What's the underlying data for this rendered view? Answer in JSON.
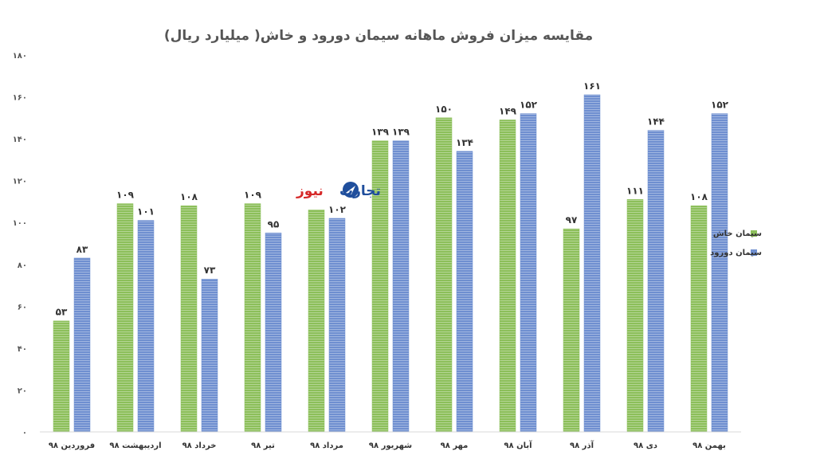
{
  "chart_data": {
    "type": "bar",
    "title": "مقایسه میزان فروش ماهانه سیمان دورود و خاش( میلیارد ریال)",
    "categories": [
      "فروردین ۹۸",
      "اردیبهشت ۹۸",
      "خرداد ۹۸",
      "تیر ۹۸",
      "مرداد ۹۸",
      "شهریور ۹۸",
      "مهر ۹۸",
      "آبان ۹۸",
      "آذر ۹۸",
      "دی ۹۸",
      "بهمن ۹۸"
    ],
    "series": [
      {
        "name": "سیمان خاش",
        "color": "#8cbf5a",
        "values": [
          53,
          109,
          108,
          109,
          106,
          139,
          150,
          149,
          97,
          111,
          108
        ],
        "labels": [
          "۵۳",
          "۱۰۹",
          "۱۰۸",
          "۱۰۹",
          "",
          "۱۳۹",
          "۱۵۰",
          "۱۴۹",
          "۹۷",
          "۱۱۱",
          "۱۰۸"
        ]
      },
      {
        "name": "سیمان دورود",
        "color": "#6f8fd0",
        "values": [
          83,
          101,
          73,
          95,
          102,
          139,
          134,
          152,
          161,
          144,
          152
        ],
        "labels": [
          "۸۳",
          "۱۰۱",
          "۷۳",
          "۹۵",
          "۱۰۲",
          "۱۳۹",
          "۱۳۴",
          "۱۵۲",
          "۱۶۱",
          "۱۴۴",
          "۱۵۲"
        ]
      }
    ],
    "ylim": [
      0,
      180
    ],
    "yticks": [
      0,
      20,
      40,
      60,
      80,
      100,
      120,
      140,
      160,
      180
    ],
    "ytick_labels": [
      "۰",
      "۲۰",
      "۴۰",
      "۶۰",
      "۸۰",
      "۱۰۰",
      "۱۲۰",
      "۱۴۰",
      "۱۶۰",
      "۱۸۰"
    ],
    "grid": false,
    "legend_position": "right"
  },
  "watermark": {
    "text_red": "نیوز",
    "text_blue": "تجارت",
    "color_red": "#d62828",
    "color_blue": "#1f4e9c",
    "logo": "globe-icon"
  }
}
